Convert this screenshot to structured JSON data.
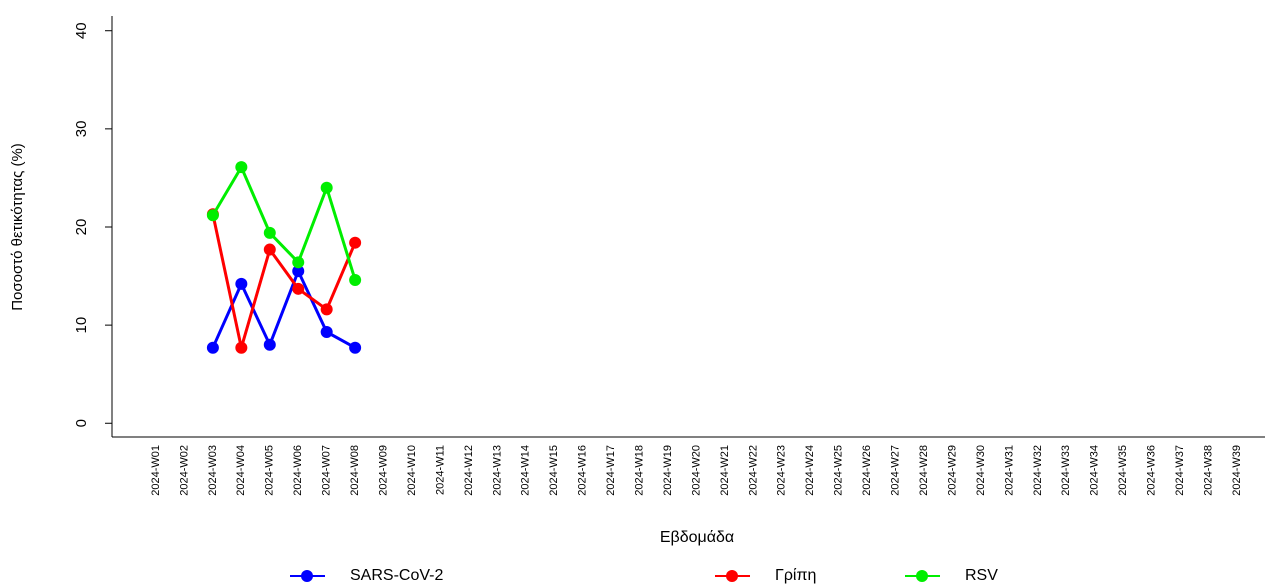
{
  "chart_data": {
    "type": "line",
    "x_label": "Εβδομάδα",
    "y_label": "Ποσοστό θετικότητας (%)",
    "categories": [
      "2024-W01",
      "2024-W02",
      "2024-W03",
      "2024-W04",
      "2024-W05",
      "2024-W06",
      "2024-W07",
      "2024-W08",
      "2024-W09",
      "2024-W10",
      "2024-W11",
      "2024-W12",
      "2024-W13",
      "2024-W14",
      "2024-W15",
      "2024-W16",
      "2024-W17",
      "2024-W18",
      "2024-W19",
      "2024-W20",
      "2024-W21",
      "2024-W22",
      "2024-W23",
      "2024-W24",
      "2024-W25",
      "2024-W26",
      "2024-W27",
      "2024-W28",
      "2024-W29",
      "2024-W30",
      "2024-W31",
      "2024-W32",
      "2024-W33",
      "2024-W34",
      "2024-W35",
      "2024-W36",
      "2024-W37",
      "2024-W38",
      "2024-W39"
    ],
    "series": [
      {
        "name": "SARS-CoV-2",
        "color": "#0000ff",
        "values": [
          null,
          null,
          7.7,
          14.2,
          8.0,
          15.5,
          9.3,
          7.7,
          null,
          null,
          null,
          null,
          null,
          null,
          null,
          null,
          null,
          null,
          null,
          null,
          null,
          null,
          null,
          null,
          null,
          null,
          null,
          null,
          null,
          null,
          null,
          null,
          null,
          null,
          null,
          null,
          null,
          null,
          null
        ]
      },
      {
        "name": "Γρίπη",
        "color": "#ff0000",
        "values": [
          null,
          null,
          21.3,
          7.7,
          17.7,
          13.7,
          11.6,
          18.4,
          null,
          null,
          null,
          null,
          null,
          null,
          null,
          null,
          null,
          null,
          null,
          null,
          null,
          null,
          null,
          null,
          null,
          null,
          null,
          null,
          null,
          null,
          null,
          null,
          null,
          null,
          null,
          null,
          null,
          null,
          null
        ]
      },
      {
        "name": "RSV",
        "color": "#00ee00",
        "values": [
          null,
          null,
          21.2,
          26.1,
          19.4,
          16.4,
          24.0,
          14.6,
          null,
          null,
          null,
          null,
          null,
          null,
          null,
          null,
          null,
          null,
          null,
          null,
          null,
          null,
          null,
          null,
          null,
          null,
          null,
          null,
          null,
          null,
          null,
          null,
          null,
          null,
          null,
          null,
          null,
          null,
          null
        ]
      }
    ],
    "ylim": [
      -1.4,
      41.5
    ],
    "yticks": [
      0,
      10,
      20,
      30,
      40
    ],
    "legend_position": "bottom"
  }
}
